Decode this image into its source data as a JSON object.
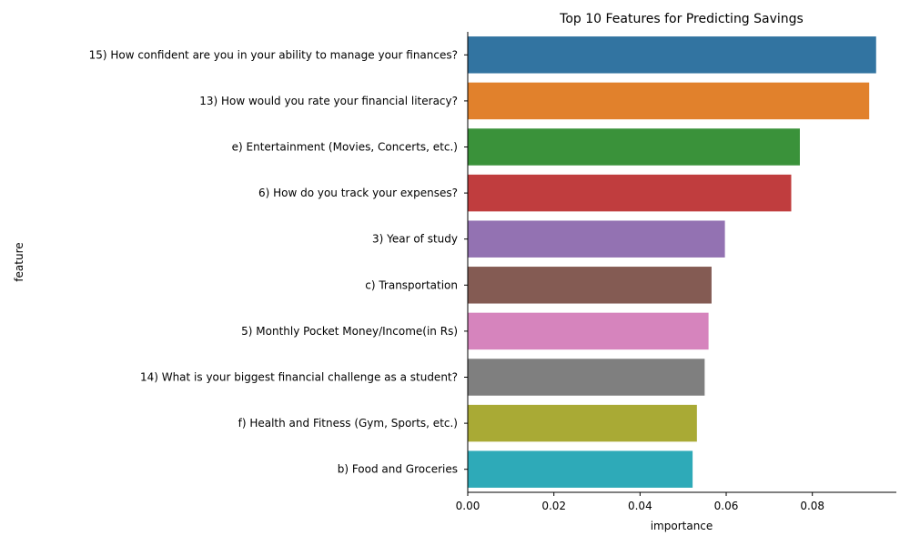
{
  "chart_data": {
    "type": "bar",
    "orientation": "horizontal",
    "title": "Top 10 Features for Predicting Savings",
    "xlabel": "importance",
    "ylabel": "feature",
    "xlim": [
      0,
      0.0995
    ],
    "xticks": [
      0.0,
      0.02,
      0.04,
      0.06,
      0.08
    ],
    "xtick_labels": [
      "0.00",
      "0.02",
      "0.04",
      "0.06",
      "0.08"
    ],
    "grid": false,
    "categories": [
      "15) How confident are you in your ability to manage your finances?",
      "13) How would you rate your financial literacy?",
      "e) Entertainment (Movies, Concerts, etc.)",
      "6) How do you track your expenses?",
      "3) Year of study",
      "c) Transportation",
      "5) Monthly Pocket Money/Income(in Rs)",
      "14) What is your biggest financial challenge as a student?",
      "f) Health and Fitness (Gym, Sports, etc.)",
      "b) Food and Groceries"
    ],
    "values": [
      0.0948,
      0.0932,
      0.0771,
      0.0751,
      0.0597,
      0.0566,
      0.0559,
      0.055,
      0.0532,
      0.0522
    ],
    "colors": [
      "#3274a1",
      "#e1812c",
      "#3a923a",
      "#c03d3e",
      "#9372b2",
      "#845b53",
      "#d684bd",
      "#7f7f7f",
      "#a9aa35",
      "#2eaab8"
    ]
  }
}
